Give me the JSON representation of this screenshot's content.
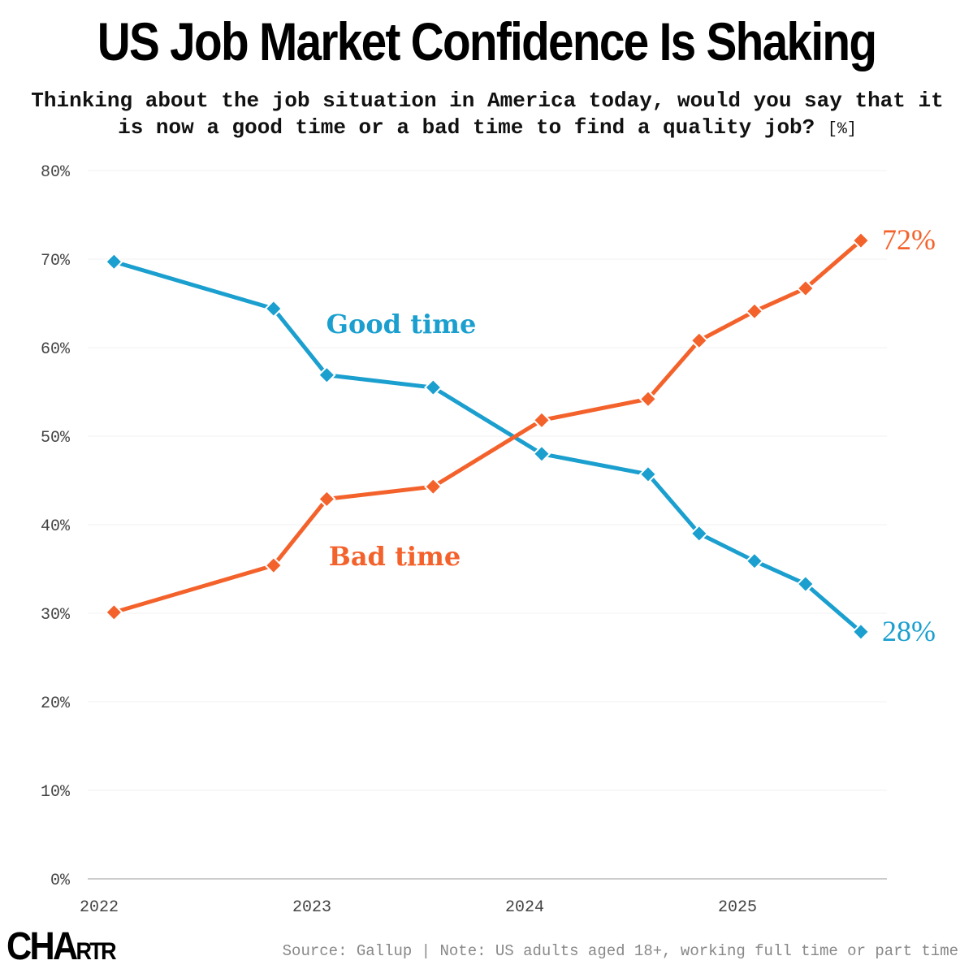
{
  "chart_data": {
    "type": "line",
    "title": "US Job Market Confidence Is Shaking",
    "subtitle": "Thinking about the job situation in America today, would you say that it is now a good time or a bad time to find a quality job?",
    "unit": "[%]",
    "xlabel": "",
    "ylabel": "",
    "ylim": [
      0,
      80
    ],
    "yticks": [
      "0%",
      "10%",
      "20%",
      "30%",
      "40%",
      "50%",
      "60%",
      "70%",
      "80%"
    ],
    "xticks": [
      "2022",
      "2023",
      "2024",
      "2025"
    ],
    "xlim": [
      2022,
      2025.68
    ],
    "x": [
      2022.07,
      2022.82,
      2023.07,
      2023.57,
      2024.08,
      2024.58,
      2024.82,
      2025.08,
      2025.32,
      2025.58
    ],
    "series": [
      {
        "name": "Good time",
        "color": "#1a9fcf",
        "values": [
          69.7,
          64.4,
          56.9,
          55.5,
          48.0,
          45.7,
          39.0,
          35.9,
          33.3,
          27.9
        ],
        "end_label": "28%"
      },
      {
        "name": "Bad time",
        "color": "#f4622c",
        "values": [
          30.1,
          35.4,
          42.9,
          44.3,
          51.8,
          54.2,
          60.8,
          64.1,
          66.7,
          72.1
        ],
        "end_label": "72%"
      }
    ],
    "grid": true,
    "legend": "inline labels"
  },
  "footer": {
    "logo": "CHARTR",
    "source": "Source: Gallup | Note: US adults aged 18+, working full time or part time"
  }
}
